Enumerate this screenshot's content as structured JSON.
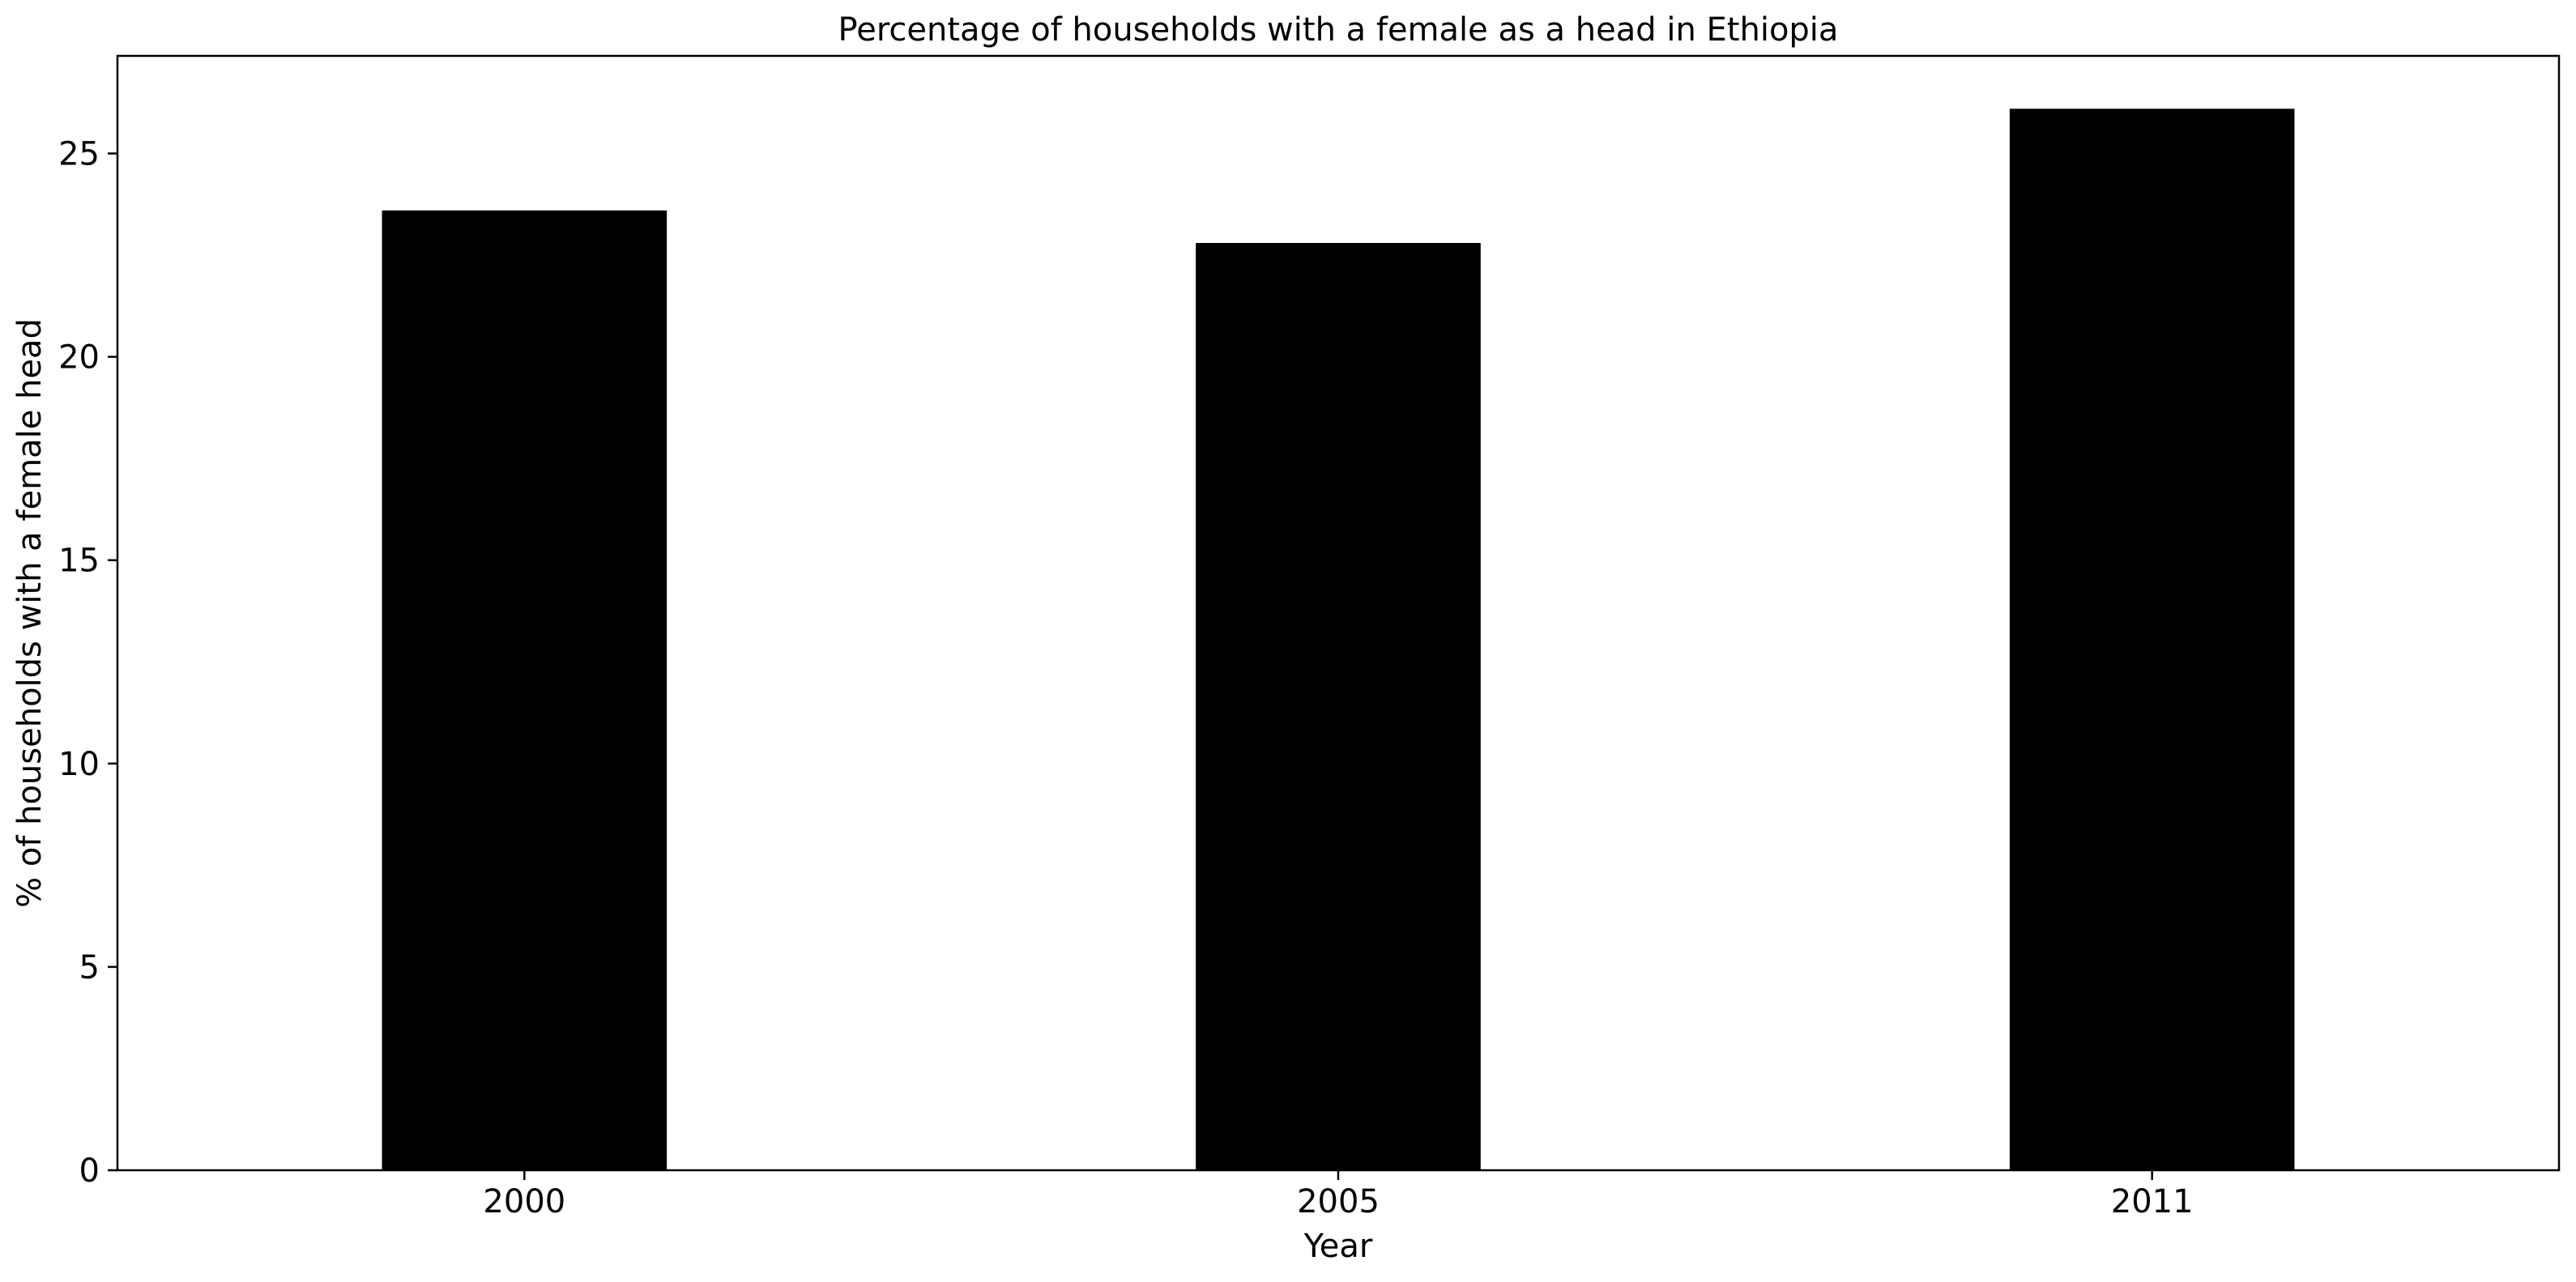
{
  "chart_data": {
    "type": "bar",
    "title": "Percentage of households with a female as a head in Ethiopia",
    "xlabel": "Year",
    "ylabel": "% of households with a female head",
    "categories": [
      "2000",
      "2005",
      "2011"
    ],
    "values": [
      23.6,
      22.8,
      26.1
    ],
    "ylim": [
      0,
      27.4
    ],
    "yticks": [
      0,
      5,
      10,
      15,
      20,
      25
    ],
    "bar_color": "#000000",
    "grid": false,
    "legend": "none"
  }
}
